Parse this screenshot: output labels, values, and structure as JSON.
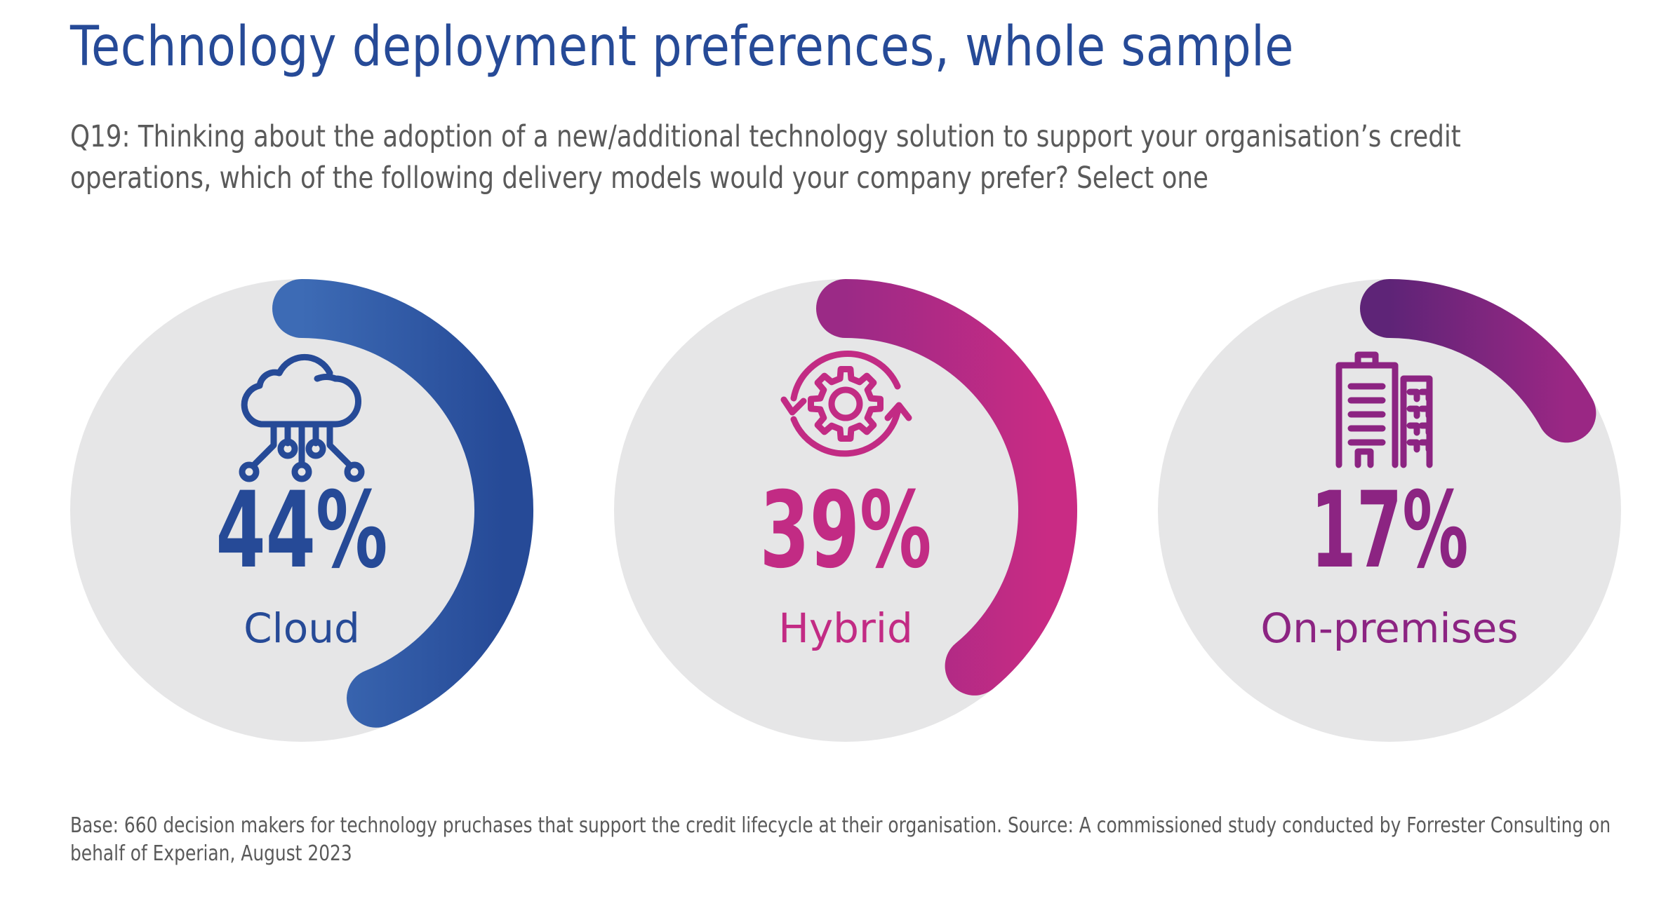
{
  "header": {
    "title": "Technology deployment preferences, whole sample",
    "question": "Q19: Thinking about the adoption of a new/additional technology solution to support your organisation’s credit operations, which of the following delivery models would your company prefer? Select one"
  },
  "chart_data": {
    "type": "pie",
    "subtype": "radial-progress",
    "title": "Technology deployment preferences, whole sample",
    "categories": [
      "Cloud",
      "Hybrid",
      "On-premises"
    ],
    "values": [
      44,
      39,
      17
    ],
    "unit": "%",
    "items": [
      {
        "label": "Cloud",
        "value": 44,
        "display": "44%",
        "icon": "cloud-network-icon",
        "color_start": "#3d6bb5",
        "color_end": "#264a97",
        "text_color": "#264a97"
      },
      {
        "label": "Hybrid",
        "value": 39,
        "display": "39%",
        "icon": "gear-cycle-icon",
        "color_start": "#9b2a86",
        "color_end": "#c92b84",
        "text_color": "#c22b84"
      },
      {
        "label": "On-premises",
        "value": 17,
        "display": "17%",
        "icon": "office-buildings-icon",
        "color_start": "#5e2477",
        "color_end": "#9a2784",
        "text_color": "#8c2482"
      }
    ],
    "track_color": "#e6e6e7"
  },
  "footer": {
    "source": "Base: 660 decision makers for technology pruchases that support the credit lifecycle at their organisation. Source: A commissioned study conducted by Forrester Consulting on behalf of Experian, August 2023"
  }
}
